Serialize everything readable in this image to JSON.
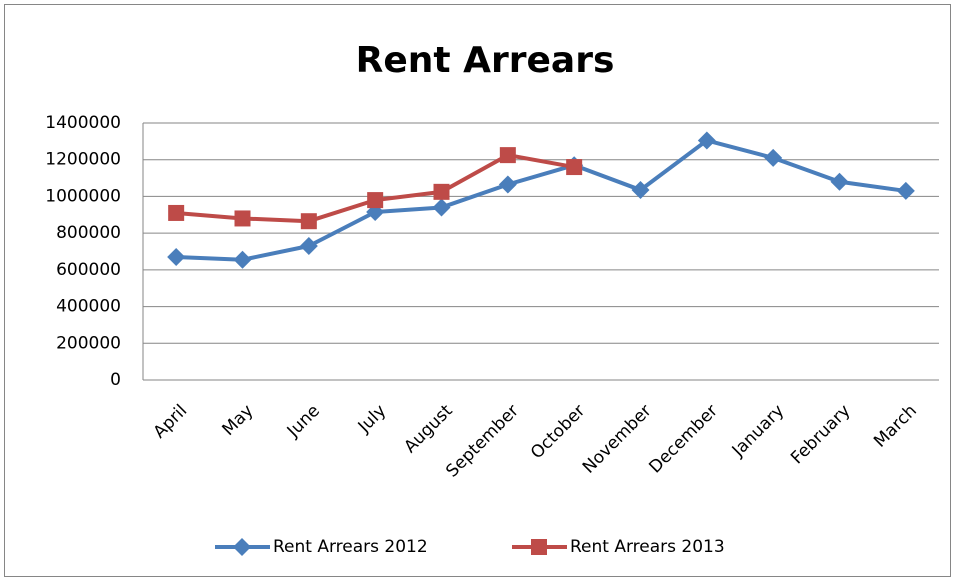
{
  "chart_data": {
    "type": "line",
    "title": "Rent Arrears",
    "categories": [
      "April",
      "May",
      "June",
      "July",
      "August",
      "September",
      "October",
      "November",
      "December",
      "January",
      "February",
      "March"
    ],
    "series": [
      {
        "name": "Rent Arrears 2012",
        "color": "#4a7ebb",
        "marker": "diamond",
        "values": [
          670000,
          655000,
          730000,
          915000,
          940000,
          1065000,
          1170000,
          1035000,
          1305000,
          1210000,
          1080000,
          1030000
        ]
      },
      {
        "name": "Rent Arrears 2013",
        "color": "#be4b48",
        "marker": "square",
        "values": [
          910000,
          880000,
          865000,
          980000,
          1025000,
          1225000,
          1160000,
          null,
          null,
          null,
          null,
          null
        ]
      }
    ],
    "ylim": [
      0,
      1400000
    ],
    "yticks": [
      0,
      200000,
      400000,
      600000,
      800000,
      1000000,
      1200000,
      1400000
    ],
    "grid": true,
    "legend": "bottom"
  }
}
